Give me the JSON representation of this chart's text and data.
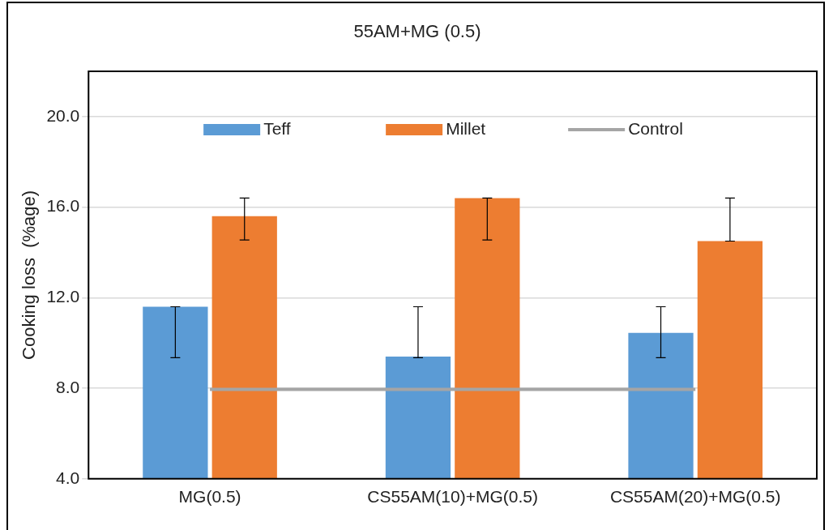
{
  "chart_data": {
    "type": "bar",
    "title": "55AM+MG (0.5)",
    "ylabel": "Cooking loss  (%age)",
    "categories": [
      "MG(0.5)",
      "CS55AM(10)+MG(0.5)",
      "CS55AM(20)+MG(0.5)"
    ],
    "series": [
      {
        "name": "Teff",
        "color": "#5b9bd5",
        "values": [
          11.6,
          9.4,
          10.45
        ],
        "errors": [
          [
            9.35,
            11.6
          ],
          [
            9.35,
            11.6
          ],
          [
            9.35,
            11.6
          ]
        ]
      },
      {
        "name": "Millet",
        "color": "#ed7d31",
        "values": [
          15.6,
          16.4,
          14.5
        ],
        "errors": [
          [
            14.55,
            16.4
          ],
          [
            14.55,
            16.4
          ],
          [
            14.5,
            16.4
          ]
        ]
      },
      {
        "name": "Control",
        "type": "line",
        "color": "#a5a5a5",
        "values": [
          7.95,
          7.95,
          7.95
        ]
      }
    ],
    "ylim": [
      4,
      22
    ],
    "yticks": [
      {
        "value": 4,
        "label": "4.0"
      },
      {
        "value": 8,
        "label": "8.0"
      },
      {
        "value": 12,
        "label": "12.0"
      },
      {
        "value": 16,
        "label": "16.0"
      },
      {
        "value": 20,
        "label": "20.0"
      }
    ],
    "grid": "y",
    "legend": "top",
    "marker": "none"
  }
}
